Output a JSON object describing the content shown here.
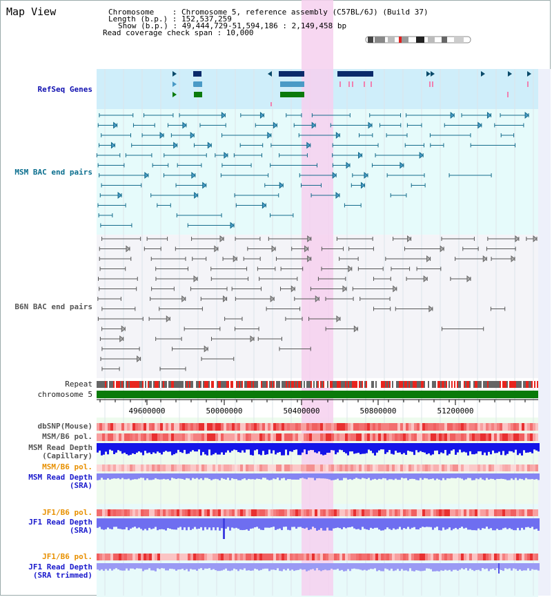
{
  "title": "Map View",
  "header": {
    "line1_key": "Chromosome",
    "line1_val": "Chromosome 5, reference assembly (C57BL/6J) (Build 37)",
    "line2_key": "Length (b.p.)",
    "line2_val": "152,537,259",
    "line3_key": "Show (b.p.)",
    "line3_val": "49,444,729-51,594,186 : 2,149,458 bp",
    "line4": "Read coverage check span : 10,000"
  },
  "tracks": {
    "refseq": "RefSeq Genes",
    "msm_bac": "MSM BAC end pairs",
    "b6n_bac": "B6N BAC end pairs",
    "repeat": "Repeat",
    "chromosome": "chromosome 5",
    "dbsnp": "dbSNP(Mouse)",
    "msm_b6_pol": "MSM/B6 pol.",
    "msm_depth_cap": "MSM Read Depth\n(Capillary)",
    "msm_b6_pol2": "MSM/B6 pol.",
    "msm_depth_sra": "MSM Read Depth\n(SRA)",
    "jf1_b6_pol": "JF1/B6 pol.",
    "jf1_depth_sra": "JF1 Read Depth\n(SRA)",
    "jf1_b6_pol2": "JF1/B6 pol.",
    "jf1_depth_trim": "JF1 Read Depth\n(SRA trimmed)"
  },
  "axis_ticks": [
    "49600000",
    "50000000",
    "50400000",
    "50800000",
    "51200000"
  ],
  "colors": {
    "highlight": "#f6d0ee",
    "refseq_bg": "#cfeefa",
    "teal_bg": "#e6fbfb",
    "grey_bg": "#f4f4f8",
    "chromosome": "#0a7a0a",
    "repeat": "#e8251e",
    "depth_dark": "#1515e8",
    "depth_light": "#7070f0"
  }
}
